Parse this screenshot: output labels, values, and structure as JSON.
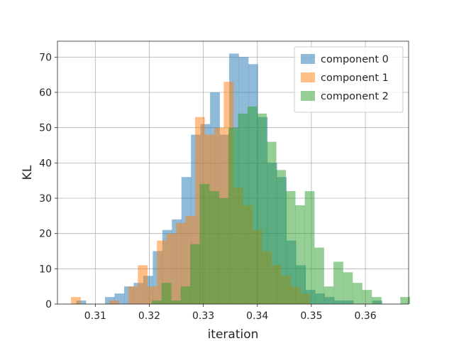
{
  "chart_data": {
    "type": "bar",
    "subtype": "overlapping-histogram",
    "xlabel": "iteration",
    "ylabel": "KL",
    "xlim": [
      0.303,
      0.368
    ],
    "ylim": [
      0,
      74.5
    ],
    "xticks": [
      0.31,
      0.32,
      0.33,
      0.34,
      0.35,
      0.36
    ],
    "xtick_labels": [
      "0.31",
      "0.32",
      "0.33",
      "0.34",
      "0.35",
      "0.36"
    ],
    "yticks": [
      0,
      10,
      20,
      30,
      40,
      50,
      60,
      70
    ],
    "ytick_labels": [
      "0",
      "10",
      "20",
      "30",
      "40",
      "50",
      "60",
      "70"
    ],
    "grid": true,
    "legend_position": "top-right",
    "series": [
      {
        "name": "component 0",
        "color": "#1f77b4",
        "alpha": 0.5,
        "bin_start": 0.3065,
        "bin_width": 0.001768,
        "counts": [
          1,
          0,
          0,
          2,
          3,
          5,
          6,
          8,
          15,
          21,
          24,
          36,
          48,
          51,
          60,
          48,
          71,
          70,
          68,
          53,
          40,
          36,
          18,
          11,
          4,
          3,
          2,
          1,
          1,
          0,
          0,
          1
        ]
      },
      {
        "name": "component 1",
        "color": "#ff7f0e",
        "alpha": 0.5,
        "bin_start": 0.3055,
        "bin_width": 0.001768,
        "counts": [
          2,
          0,
          0,
          0,
          1,
          0,
          5,
          11,
          5,
          18,
          20,
          23,
          25,
          53,
          48,
          50,
          63,
          33,
          28,
          21,
          15,
          11,
          8,
          5,
          3,
          0,
          0,
          0,
          0
        ]
      },
      {
        "name": "component 2",
        "color": "#2ca02c",
        "alpha": 0.5,
        "bin_start": 0.3205,
        "bin_width": 0.001768,
        "counts": [
          1,
          6,
          1,
          5,
          17,
          34,
          32,
          30,
          50,
          54,
          56,
          54,
          46,
          38,
          32,
          28,
          32,
          16,
          5,
          12,
          9,
          6,
          4,
          2,
          0,
          0,
          2
        ]
      }
    ]
  }
}
